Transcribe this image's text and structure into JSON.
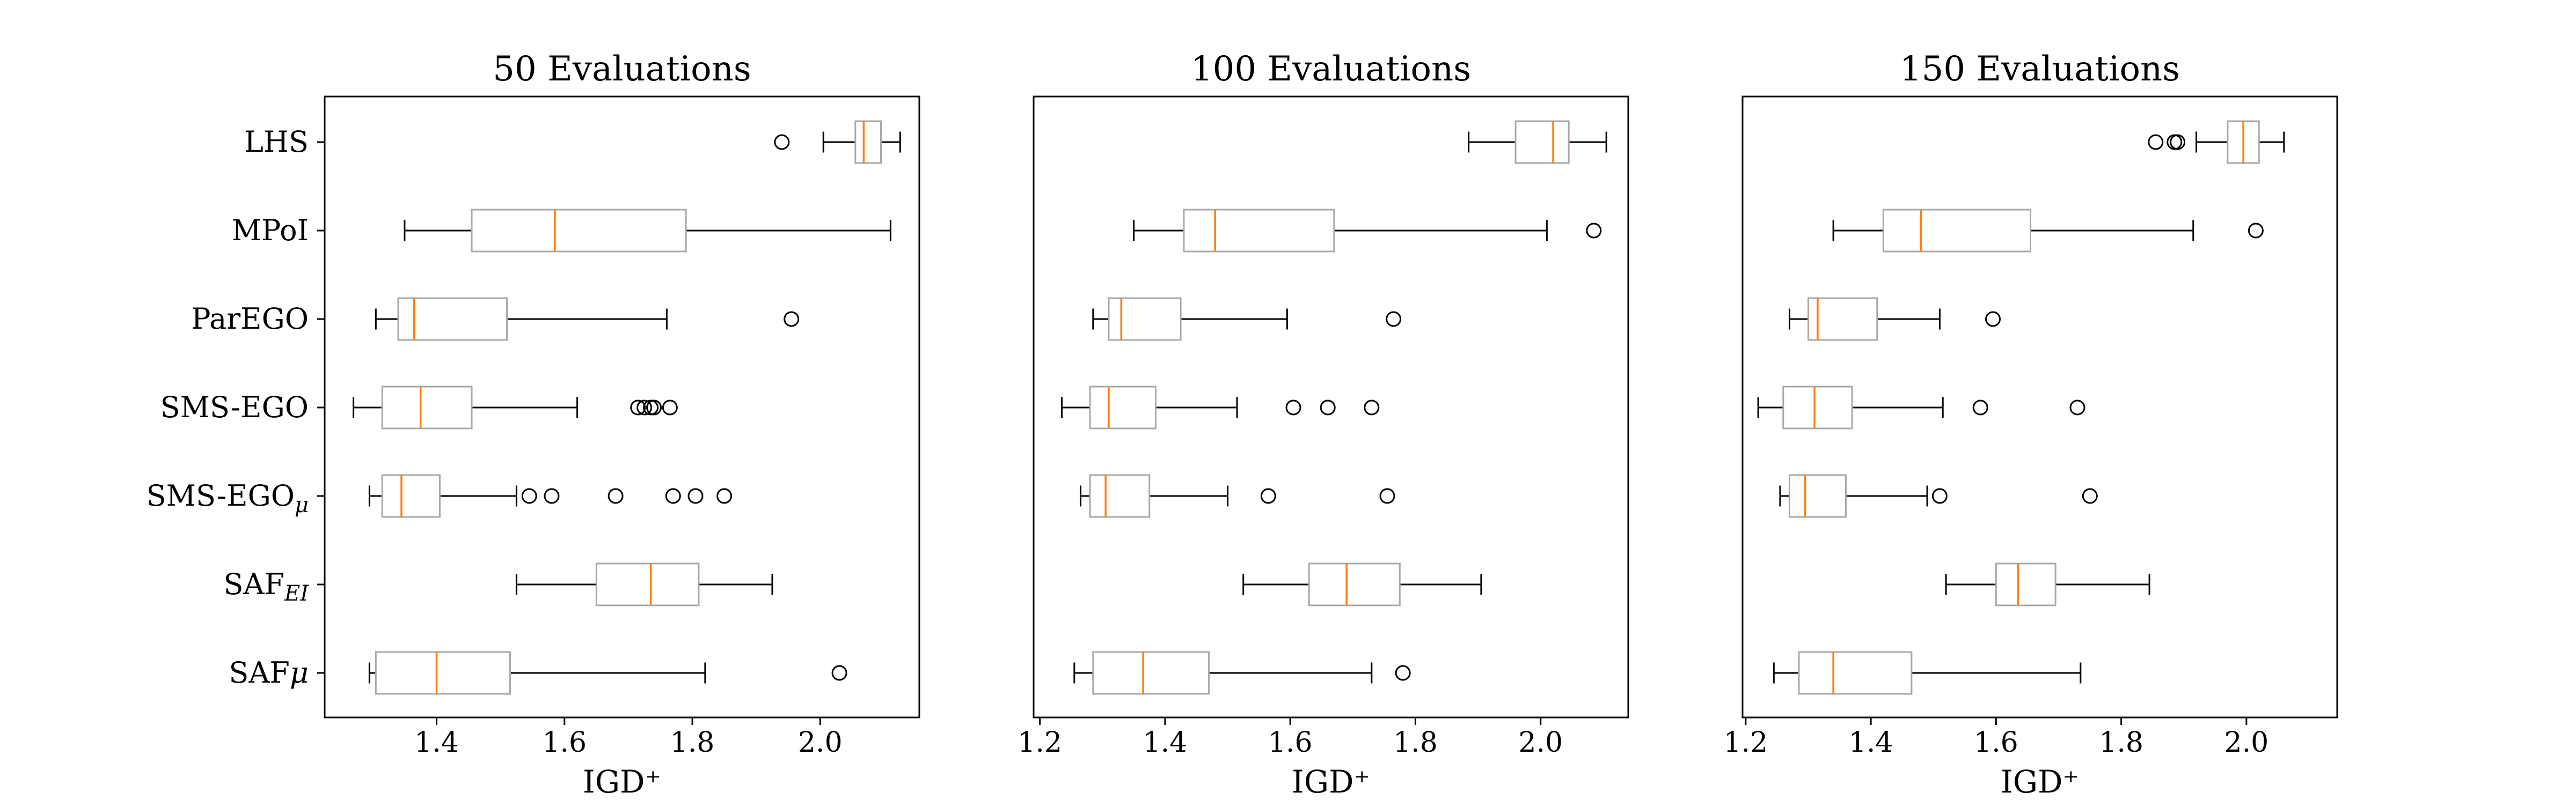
{
  "chart_data": [
    {
      "type": "boxplot",
      "title": "50 Evaluations",
      "xlabel": "IGD⁺",
      "xlim": [
        1.225,
        2.155
      ],
      "xticks": [
        "1.4",
        "1.6",
        "1.8",
        "2.0"
      ],
      "categories": [
        "LHS",
        "MPoI",
        "ParEGO",
        "SMS-EGO",
        "SMS-EGOμ",
        "SAF_EI",
        "SAFμ"
      ],
      "boxes": [
        {
          "label": "LHS",
          "whislo": 2.005,
          "q1": 2.055,
          "med": 2.068,
          "q3": 2.095,
          "whishi": 2.125,
          "fliers": [
            1.94
          ]
        },
        {
          "label": "MPoI",
          "whislo": 1.35,
          "q1": 1.455,
          "med": 1.585,
          "q3": 1.79,
          "whishi": 2.11,
          "fliers": []
        },
        {
          "label": "ParEGO",
          "whislo": 1.305,
          "q1": 1.34,
          "med": 1.365,
          "q3": 1.51,
          "whishi": 1.76,
          "fliers": [
            1.955
          ]
        },
        {
          "label": "SMS-EGO",
          "whislo": 1.27,
          "q1": 1.315,
          "med": 1.375,
          "q3": 1.455,
          "whishi": 1.62,
          "fliers": [
            1.715,
            1.725,
            1.735,
            1.74,
            1.765
          ]
        },
        {
          "label": "SMS-EGOμ",
          "whislo": 1.295,
          "q1": 1.315,
          "med": 1.345,
          "q3": 1.405,
          "whishi": 1.525,
          "fliers": [
            1.545,
            1.58,
            1.68,
            1.77,
            1.805,
            1.85
          ]
        },
        {
          "label": "SAF_EI",
          "whislo": 1.525,
          "q1": 1.65,
          "med": 1.735,
          "q3": 1.81,
          "whishi": 1.925,
          "fliers": []
        },
        {
          "label": "SAFμ",
          "whislo": 1.295,
          "q1": 1.305,
          "med": 1.4,
          "q3": 1.515,
          "whishi": 1.82,
          "fliers": [
            2.03
          ]
        }
      ]
    },
    {
      "type": "boxplot",
      "title": "100 Evaluations",
      "xlabel": "IGD⁺",
      "xlim": [
        1.19,
        2.14
      ],
      "xticks": [
        "1.2",
        "1.4",
        "1.6",
        "1.8",
        "2.0"
      ],
      "categories": [
        "LHS",
        "MPoI",
        "ParEGO",
        "SMS-EGO",
        "SMS-EGOμ",
        "SAF_EI",
        "SAFμ"
      ],
      "boxes": [
        {
          "label": "LHS",
          "whislo": 1.885,
          "q1": 1.96,
          "med": 2.02,
          "q3": 2.045,
          "whishi": 2.105,
          "fliers": []
        },
        {
          "label": "MPoI",
          "whislo": 1.35,
          "q1": 1.43,
          "med": 1.48,
          "q3": 1.67,
          "whishi": 2.01,
          "fliers": [
            2.085
          ]
        },
        {
          "label": "ParEGO",
          "whislo": 1.285,
          "q1": 1.31,
          "med": 1.33,
          "q3": 1.425,
          "whishi": 1.595,
          "fliers": [
            1.765
          ]
        },
        {
          "label": "SMS-EGO",
          "whislo": 1.235,
          "q1": 1.28,
          "med": 1.31,
          "q3": 1.385,
          "whishi": 1.515,
          "fliers": [
            1.605,
            1.66,
            1.73
          ]
        },
        {
          "label": "SMS-EGOμ",
          "whislo": 1.265,
          "q1": 1.28,
          "med": 1.305,
          "q3": 1.375,
          "whishi": 1.5,
          "fliers": [
            1.565,
            1.755
          ]
        },
        {
          "label": "SAF_EI",
          "whislo": 1.525,
          "q1": 1.63,
          "med": 1.69,
          "q3": 1.775,
          "whishi": 1.905,
          "fliers": []
        },
        {
          "label": "SAFμ",
          "whislo": 1.255,
          "q1": 1.285,
          "med": 1.365,
          "q3": 1.47,
          "whishi": 1.73,
          "fliers": [
            1.78
          ]
        }
      ]
    },
    {
      "type": "boxplot",
      "title": "150 Evaluations",
      "xlabel": "IGD⁺",
      "xlim": [
        1.195,
        2.145
      ],
      "xticks": [
        "1.2",
        "1.4",
        "1.6",
        "1.8",
        "2.0"
      ],
      "categories": [
        "LHS",
        "MPoI",
        "ParEGO",
        "SMS-EGO",
        "SMS-EGOμ",
        "SAF_EI",
        "SAFμ"
      ],
      "boxes": [
        {
          "label": "LHS",
          "whislo": 1.92,
          "q1": 1.97,
          "med": 1.995,
          "q3": 2.02,
          "whishi": 2.06,
          "fliers": [
            1.855,
            1.885,
            1.89
          ]
        },
        {
          "label": "MPoI",
          "whislo": 1.34,
          "q1": 1.42,
          "med": 1.48,
          "q3": 1.655,
          "whishi": 1.915,
          "fliers": [
            2.015
          ]
        },
        {
          "label": "ParEGO",
          "whislo": 1.27,
          "q1": 1.3,
          "med": 1.315,
          "q3": 1.41,
          "whishi": 1.51,
          "fliers": [
            1.595
          ]
        },
        {
          "label": "SMS-EGO",
          "whislo": 1.22,
          "q1": 1.26,
          "med": 1.31,
          "q3": 1.37,
          "whishi": 1.515,
          "fliers": [
            1.575,
            1.73
          ]
        },
        {
          "label": "SMS-EGOμ",
          "whislo": 1.255,
          "q1": 1.27,
          "med": 1.295,
          "q3": 1.36,
          "whishi": 1.49,
          "fliers": [
            1.51,
            1.75
          ]
        },
        {
          "label": "SAF_EI",
          "whislo": 1.52,
          "q1": 1.6,
          "med": 1.635,
          "q3": 1.695,
          "whishi": 1.845,
          "fliers": []
        },
        {
          "label": "SAFμ",
          "whislo": 1.245,
          "q1": 1.285,
          "med": 1.34,
          "q3": 1.465,
          "whishi": 1.735,
          "fliers": []
        }
      ]
    }
  ],
  "colors": {
    "box": "#a8a8a8",
    "median": "#ff7f0e",
    "whisker": "#000000",
    "axes": "#000000"
  },
  "style": {
    "grid": false,
    "legend": "none",
    "orientation": "horizontal",
    "shared_y": true
  }
}
